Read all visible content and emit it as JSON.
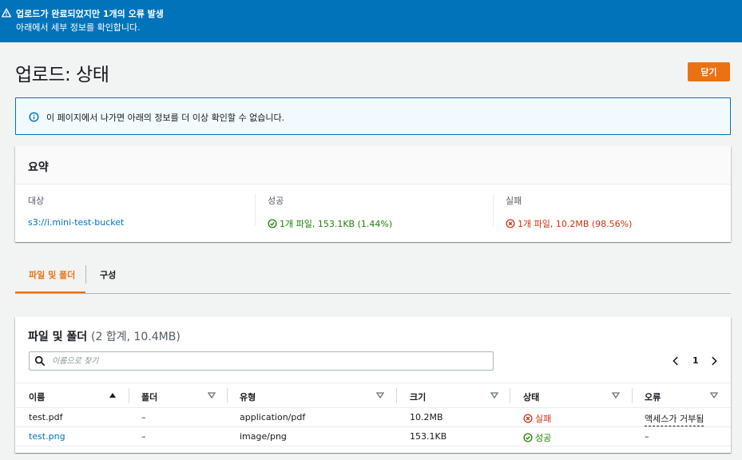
{
  "flash": {
    "title": "업로드가 완료되었지만 1개의 오류 발생",
    "message": "아래에서 세부 정보를 확인합니다.",
    "color": "#0073bb"
  },
  "page": {
    "title": "업로드: 상태",
    "close_label": "닫기"
  },
  "info": {
    "text": "이 페이지에서 나가면 아래의 정보를 더 이상 확인할 수 없습니다."
  },
  "summary": {
    "title": "요약",
    "target_label": "대상",
    "target_value": "s3://i.mini-test-bucket",
    "success_label": "성공",
    "success_value": "1개 파일, 153.1KB (1.44%)",
    "failure_label": "실패",
    "failure_value": "1개 파일, 10.2MB (98.56%)"
  },
  "tabs": [
    {
      "label": "파일 및 폴더",
      "active": true
    },
    {
      "label": "구성",
      "active": false
    }
  ],
  "files": {
    "title": "파일 및 폴더",
    "count": "(2 합계, 10.4MB)",
    "search_placeholder": "이름으로 찾기",
    "page": "1",
    "columns": [
      "이름",
      "폴더",
      "유형",
      "크기",
      "상태",
      "오류"
    ],
    "rows": [
      {
        "name": "test.pdf",
        "folder": "–",
        "type": "application/pdf",
        "size": "10.2MB",
        "status": "실패",
        "error": "액세스가 거부됨"
      },
      {
        "name": "test.png",
        "folder": "–",
        "type": "image/png",
        "size": "153.1KB",
        "status": "성공",
        "error": "–"
      }
    ]
  },
  "colors": {
    "accent": "#ec7211",
    "link": "#0073bb",
    "success": "#1d8102",
    "error": "#d13212"
  }
}
